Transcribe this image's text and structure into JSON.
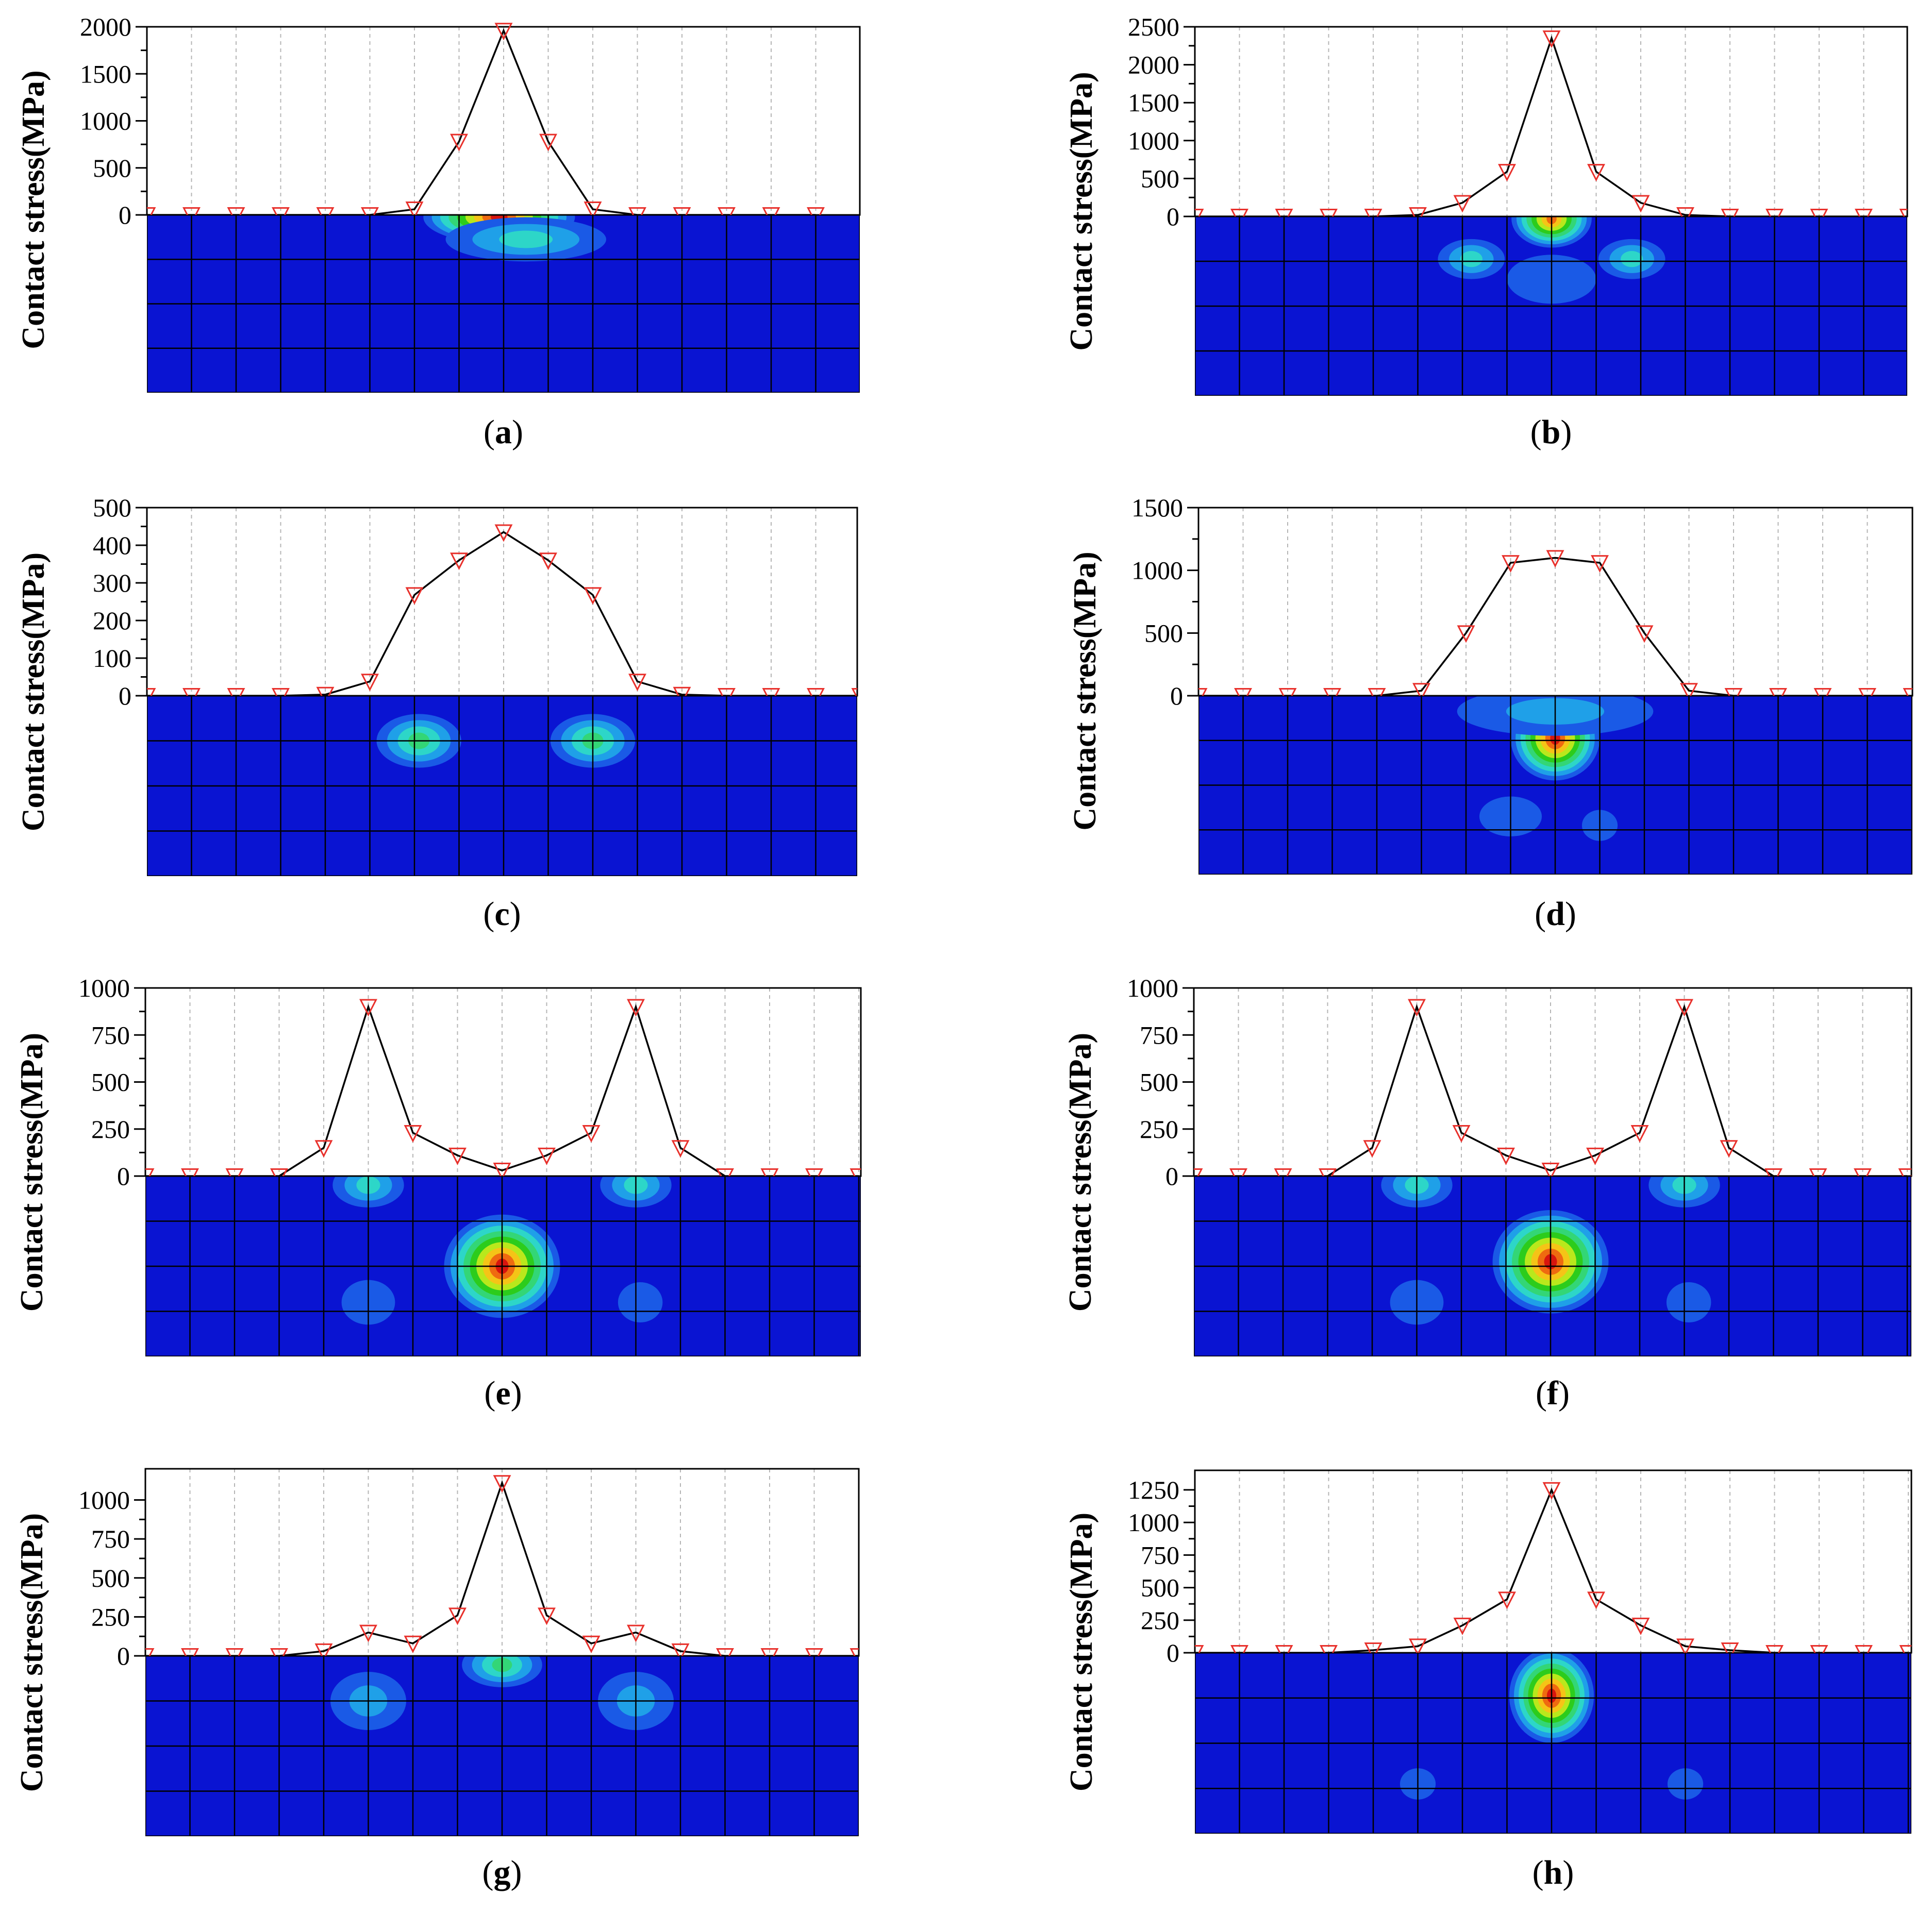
{
  "colors": {
    "line": "#000000",
    "marker": "#e8302b",
    "grid": "#b5b5b5",
    "field_background": "#0a14d2",
    "contour_scale": [
      "#1a5ae6",
      "#1fa0e8",
      "#2dd6c8",
      "#33d676",
      "#2ccc1c",
      "#b9e81c",
      "#f5c417",
      "#ef6a10",
      "#d8150e"
    ]
  },
  "chart_data": [
    {
      "type": "line",
      "panel": "a",
      "caption": "a",
      "ylabel": "Contact stress(MPa)",
      "xlabel": "",
      "x": [
        0,
        1,
        2,
        3,
        4,
        5,
        6,
        7,
        8,
        9,
        10,
        11,
        12,
        13,
        14,
        15
      ],
      "y": [
        0,
        0,
        0,
        0,
        0,
        0,
        60,
        780,
        1960,
        780,
        60,
        0,
        0,
        0,
        0,
        0
      ],
      "ylim": [
        0,
        2000
      ],
      "yticks": [
        0,
        500,
        1000,
        1500,
        2000
      ],
      "marker": "triangle-down",
      "grid": "vertical-dotted",
      "contour_hotspots": [
        {
          "x": 7.9,
          "d": 0.05,
          "rx": 1.7,
          "ry": 0.55,
          "peak": 9
        },
        {
          "x": 8.5,
          "d": 0.55,
          "rx": 1.8,
          "ry": 0.45,
          "peak": 3
        }
      ]
    },
    {
      "type": "line",
      "panel": "b",
      "caption": "b",
      "ylabel": "Contact stress(MPa)",
      "xlabel": "",
      "x": [
        0,
        1,
        2,
        3,
        4,
        5,
        6,
        7,
        8,
        9,
        10,
        11,
        12,
        13,
        14,
        15,
        16
      ],
      "y": [
        0,
        0,
        0,
        0,
        0,
        20,
        180,
        590,
        2350,
        590,
        180,
        20,
        0,
        0,
        0,
        0,
        0
      ],
      "ylim": [
        0,
        2500
      ],
      "yticks": [
        0,
        500,
        1000,
        1500,
        2000,
        2500
      ],
      "marker": "triangle-down",
      "grid": "vertical-dotted",
      "contour_hotspots": [
        {
          "x": 8.0,
          "d": 0.05,
          "rx": 0.9,
          "ry": 0.6,
          "peak": 8
        },
        {
          "x": 6.2,
          "d": 0.95,
          "rx": 0.75,
          "ry": 0.4,
          "peak": 3
        },
        {
          "x": 9.8,
          "d": 0.95,
          "rx": 0.75,
          "ry": 0.4,
          "peak": 3
        },
        {
          "x": 8.0,
          "d": 1.4,
          "rx": 1.0,
          "ry": 0.5,
          "peak": 1
        }
      ]
    },
    {
      "type": "line",
      "panel": "c",
      "caption": "c",
      "ylabel": "Contact stress(MPa)",
      "xlabel": "",
      "x": [
        0,
        1,
        2,
        3,
        4,
        5,
        6,
        7,
        8,
        9,
        10,
        11,
        12,
        13,
        14,
        15,
        16
      ],
      "y": [
        0,
        0,
        0,
        0,
        3,
        38,
        268,
        360,
        435,
        360,
        268,
        38,
        3,
        0,
        0,
        0,
        0
      ],
      "ylim": [
        0,
        500
      ],
      "yticks": [
        0,
        100,
        200,
        300,
        400,
        500
      ],
      "marker": "triangle-down",
      "grid": "vertical-dotted",
      "contour_hotspots": [
        {
          "x": 6.1,
          "d": 1.0,
          "rx": 0.95,
          "ry": 0.55,
          "peak": 4
        },
        {
          "x": 10.0,
          "d": 1.0,
          "rx": 0.95,
          "ry": 0.55,
          "peak": 4
        }
      ]
    },
    {
      "type": "line",
      "panel": "d",
      "caption": "d",
      "ylabel": "Contact stress(MPa)",
      "xlabel": "",
      "x": [
        0,
        1,
        2,
        3,
        4,
        5,
        6,
        7,
        8,
        9,
        10,
        11,
        12,
        13,
        14,
        15,
        16
      ],
      "y": [
        0,
        0,
        0,
        0,
        0,
        40,
        500,
        1060,
        1100,
        1060,
        500,
        40,
        0,
        0,
        0,
        0,
        0
      ],
      "ylim": [
        0,
        1500
      ],
      "yticks": [
        0,
        500,
        1000,
        1500
      ],
      "marker": "triangle-down",
      "grid": "vertical-dotted",
      "contour_hotspots": [
        {
          "x": 8.0,
          "d": 0.95,
          "rx": 1.0,
          "ry": 0.9,
          "peak": 9
        },
        {
          "x": 8.0,
          "d": 0.35,
          "rx": 2.2,
          "ry": 0.5,
          "peak": 2
        },
        {
          "x": 7.0,
          "d": 2.7,
          "rx": 0.7,
          "ry": 0.4,
          "peak": 1
        },
        {
          "x": 9.0,
          "d": 2.9,
          "rx": 0.4,
          "ry": 0.3,
          "peak": 1
        }
      ]
    },
    {
      "type": "line",
      "panel": "e",
      "caption": "e",
      "ylabel": "Contact stress(MPa)",
      "xlabel": "",
      "x": [
        0,
        1,
        2,
        3,
        4,
        5,
        6,
        7,
        8,
        9,
        10,
        11,
        12,
        13,
        14,
        15,
        16
      ],
      "y": [
        0,
        0,
        0,
        0,
        150,
        900,
        230,
        110,
        30,
        110,
        230,
        900,
        150,
        0,
        0,
        0,
        0
      ],
      "ylim": [
        0,
        1000
      ],
      "yticks": [
        0,
        250,
        500,
        750,
        1000
      ],
      "marker": "triangle-down",
      "grid": "vertical-dotted",
      "contour_hotspots": [
        {
          "x": 8.0,
          "d": 2.0,
          "rx": 1.3,
          "ry": 1.1,
          "peak": 9
        },
        {
          "x": 5.0,
          "d": 0.2,
          "rx": 0.8,
          "ry": 0.45,
          "peak": 3
        },
        {
          "x": 11.0,
          "d": 0.2,
          "rx": 0.8,
          "ry": 0.45,
          "peak": 3
        },
        {
          "x": 5.0,
          "d": 2.8,
          "rx": 0.6,
          "ry": 0.45,
          "peak": 1
        },
        {
          "x": 11.1,
          "d": 2.8,
          "rx": 0.5,
          "ry": 0.4,
          "peak": 1
        }
      ]
    },
    {
      "type": "line",
      "panel": "f",
      "caption": "f",
      "ylabel": "Contact stress(MPa)",
      "xlabel": "",
      "x": [
        0,
        1,
        2,
        3,
        4,
        5,
        6,
        7,
        8,
        9,
        10,
        11,
        12,
        13,
        14,
        15,
        16
      ],
      "y": [
        0,
        0,
        0,
        0,
        150,
        900,
        230,
        110,
        30,
        110,
        230,
        900,
        150,
        0,
        0,
        0,
        0
      ],
      "ylim": [
        0,
        1000
      ],
      "yticks": [
        0,
        250,
        500,
        750,
        1000
      ],
      "marker": "triangle-down",
      "grid": "vertical-dotted",
      "contour_hotspots": [
        {
          "x": 8.0,
          "d": 1.9,
          "rx": 1.3,
          "ry": 1.1,
          "peak": 9
        },
        {
          "x": 5.0,
          "d": 0.2,
          "rx": 0.8,
          "ry": 0.45,
          "peak": 3
        },
        {
          "x": 11.0,
          "d": 0.2,
          "rx": 0.8,
          "ry": 0.45,
          "peak": 3
        },
        {
          "x": 5.0,
          "d": 2.8,
          "rx": 0.6,
          "ry": 0.45,
          "peak": 1
        },
        {
          "x": 11.1,
          "d": 2.8,
          "rx": 0.5,
          "ry": 0.4,
          "peak": 1
        }
      ]
    },
    {
      "type": "line",
      "panel": "g",
      "caption": "g",
      "ylabel": "Contact stress(MPa)",
      "xlabel": "",
      "x": [
        0,
        1,
        2,
        3,
        4,
        5,
        6,
        7,
        8,
        9,
        10,
        11,
        12,
        13,
        14,
        15,
        16
      ],
      "y": [
        0,
        0,
        0,
        0,
        30,
        150,
        80,
        260,
        1110,
        260,
        80,
        150,
        30,
        0,
        0,
        0,
        0
      ],
      "ylim": [
        0,
        1200
      ],
      "yticks": [
        0,
        250,
        500,
        750,
        1000
      ],
      "marker": "triangle-down",
      "grid": "vertical-dotted",
      "contour_hotspots": [
        {
          "x": 5.0,
          "d": 1.0,
          "rx": 0.85,
          "ry": 0.6,
          "peak": 2
        },
        {
          "x": 11.0,
          "d": 1.0,
          "rx": 0.85,
          "ry": 0.6,
          "peak": 2
        },
        {
          "x": 8.0,
          "d": 0.2,
          "rx": 0.9,
          "ry": 0.45,
          "peak": 4
        }
      ]
    },
    {
      "type": "line",
      "panel": "h",
      "caption": "h",
      "ylabel": "Contact stress(MPa)",
      "xlabel": "",
      "x": [
        0,
        1,
        2,
        3,
        4,
        5,
        6,
        7,
        8,
        9,
        10,
        11,
        12,
        13,
        14,
        15,
        16
      ],
      "y": [
        0,
        0,
        0,
        0,
        20,
        50,
        210,
        410,
        1250,
        410,
        210,
        50,
        20,
        0,
        0,
        0,
        0
      ],
      "ylim": [
        0,
        1400
      ],
      "yticks": [
        0,
        250,
        500,
        750,
        1000,
        1250
      ],
      "marker": "triangle-down",
      "grid": "vertical-dotted",
      "contour_hotspots": [
        {
          "x": 8.0,
          "d": 0.95,
          "rx": 0.95,
          "ry": 1.0,
          "peak": 9
        },
        {
          "x": 5.0,
          "d": 2.9,
          "rx": 0.4,
          "ry": 0.3,
          "peak": 1
        },
        {
          "x": 11.0,
          "d": 2.9,
          "rx": 0.4,
          "ry": 0.3,
          "peak": 1
        }
      ]
    }
  ]
}
